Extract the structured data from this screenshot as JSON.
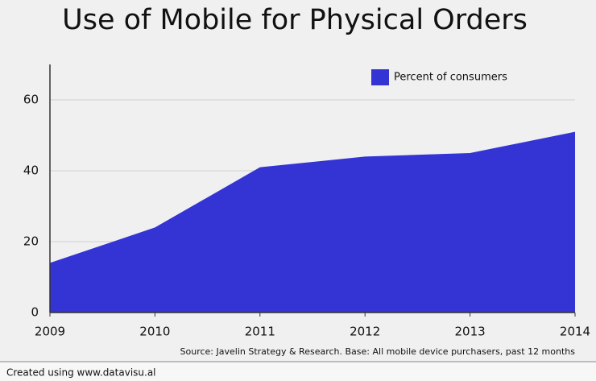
{
  "chart_data": {
    "type": "area",
    "title": "Use of Mobile for Physical Orders",
    "x": [
      2009,
      2010,
      2011,
      2012,
      2013,
      2014
    ],
    "series": [
      {
        "name": "Percent of consumers",
        "color": "#3434d4",
        "values": [
          14,
          24,
          41,
          44,
          45,
          51
        ]
      }
    ],
    "xlim": [
      2009,
      2014
    ],
    "xticks": [
      2009,
      2010,
      2011,
      2012,
      2013,
      2014
    ],
    "ylim": [
      0,
      70
    ],
    "yticks": [
      0,
      20,
      40,
      60
    ],
    "grid": true,
    "legend": "top-right",
    "source": "Source: Javelin Strategy & Research. Base: All mobile device purchasers, past 12 months",
    "footer": "Created using www.datavisu.al"
  }
}
